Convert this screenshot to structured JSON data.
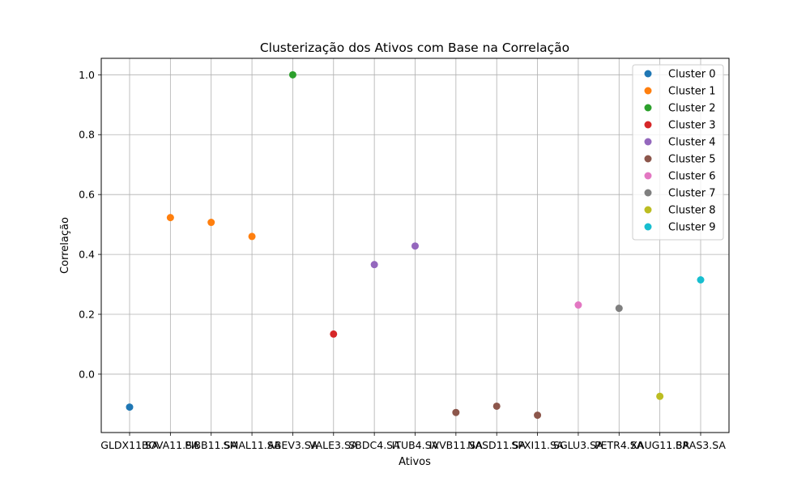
{
  "chart_data": {
    "type": "scatter",
    "title": "Clusterização dos Ativos com Base na Correlação",
    "xlabel": "Ativos",
    "ylabel": "Correlação",
    "ylim": [
      -0.195,
      1.055
    ],
    "yticks": [
      0.0,
      0.2,
      0.4,
      0.6,
      0.8,
      1.0
    ],
    "ytick_labels": [
      "0.0",
      "0.2",
      "0.4",
      "0.6",
      "0.8",
      "1.0"
    ],
    "grid": true,
    "legend_position": "top-right",
    "categories": [
      "GLDX11.SA",
      "BOVA11.SA",
      "PIBB11.SA",
      "SMAL11.SA",
      "ABEV3.SA",
      "VALE3.SA",
      "SBDC4.SA",
      "ITUB4.SA",
      "IVVB11.SA",
      "NASD11.SA",
      "SPXI11.SA",
      "SGLU3.SA",
      "PETR4.SA",
      "XAUG11.SA",
      "BRAS3.SA"
    ],
    "series": [
      {
        "name": "Cluster 0",
        "color": "#1f77b4",
        "points": [
          {
            "x": "GLDX11.SA",
            "y": -0.11
          }
        ]
      },
      {
        "name": "Cluster 1",
        "color": "#ff7f0e",
        "points": [
          {
            "x": "BOVA11.SA",
            "y": 0.523
          },
          {
            "x": "PIBB11.SA",
            "y": 0.507
          },
          {
            "x": "SMAL11.SA",
            "y": 0.46
          }
        ]
      },
      {
        "name": "Cluster 2",
        "color": "#2ca02c",
        "points": [
          {
            "x": "ABEV3.SA",
            "y": 1.0
          }
        ]
      },
      {
        "name": "Cluster 3",
        "color": "#d62728",
        "points": [
          {
            "x": "VALE3.SA",
            "y": 0.134
          }
        ]
      },
      {
        "name": "Cluster 4",
        "color": "#9467bd",
        "points": [
          {
            "x": "SBDC4.SA",
            "y": 0.366
          },
          {
            "x": "ITUB4.SA",
            "y": 0.428
          }
        ]
      },
      {
        "name": "Cluster 5",
        "color": "#8c564b",
        "points": [
          {
            "x": "IVVB11.SA",
            "y": -0.128
          },
          {
            "x": "NASD11.SA",
            "y": -0.107
          },
          {
            "x": "SPXI11.SA",
            "y": -0.137
          }
        ]
      },
      {
        "name": "Cluster 6",
        "color": "#e377c2",
        "points": [
          {
            "x": "SGLU3.SA",
            "y": 0.231
          }
        ]
      },
      {
        "name": "Cluster 7",
        "color": "#7f7f7f",
        "points": [
          {
            "x": "PETR4.SA",
            "y": 0.22
          }
        ]
      },
      {
        "name": "Cluster 8",
        "color": "#bcbd22",
        "points": [
          {
            "x": "XAUG11.SA",
            "y": -0.074
          }
        ]
      },
      {
        "name": "Cluster 9",
        "color": "#17becf",
        "points": [
          {
            "x": "BRAS3.SA",
            "y": 0.315
          }
        ]
      }
    ]
  }
}
